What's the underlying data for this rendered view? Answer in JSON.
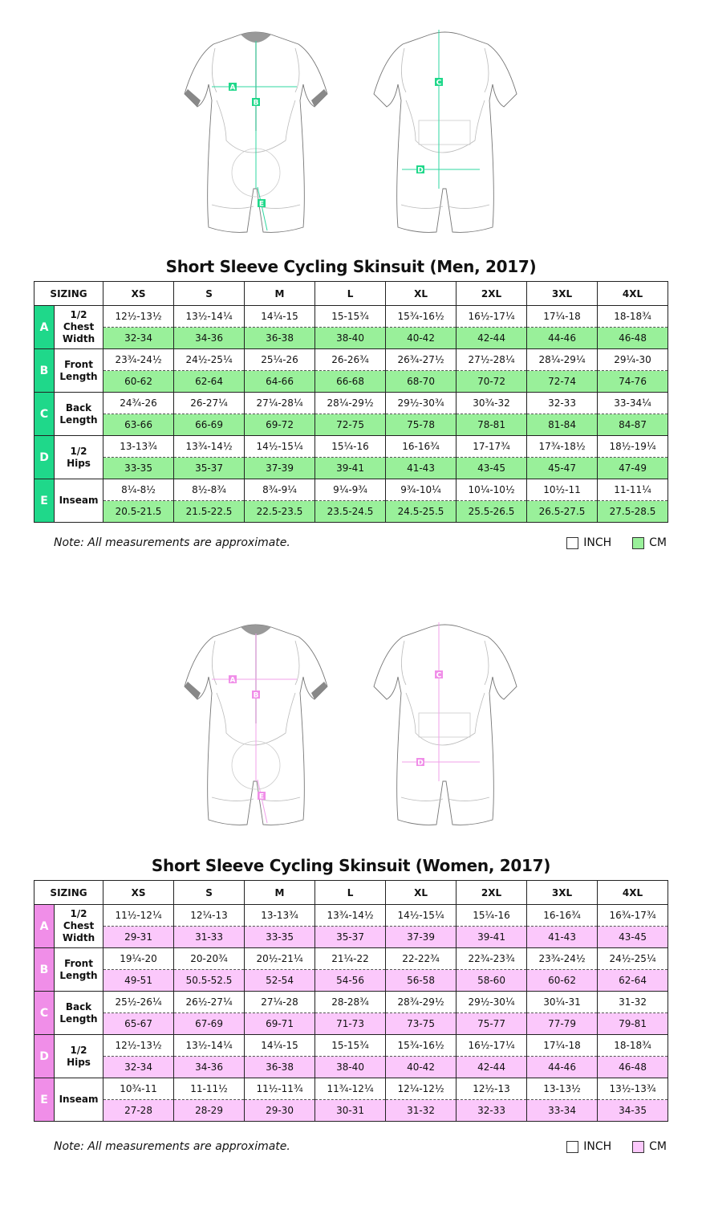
{
  "charts": [
    {
      "id": "men",
      "title": "Short Sleeve Cycling Skinsuit (Men, 2017)",
      "colors": {
        "accent": "#1fd88a",
        "cm_row": "#99f09a",
        "line": "#2fd7a0"
      },
      "header": {
        "sizing": "SIZING",
        "sizes": [
          "XS",
          "S",
          "M",
          "L",
          "XL",
          "2XL",
          "3XL",
          "4XL"
        ]
      },
      "rows": [
        {
          "letter": "A",
          "label": [
            "1/2",
            "Chest",
            "Width"
          ],
          "inch": [
            "12½-13½",
            "13½-14¼",
            "14¼-15",
            "15-15¾",
            "15¾-16½",
            "16½-17¼",
            "17¼-18",
            "18-18¾"
          ],
          "cm": [
            "32-34",
            "34-36",
            "36-38",
            "38-40",
            "40-42",
            "42-44",
            "44-46",
            "46-48"
          ]
        },
        {
          "letter": "B",
          "label": [
            "Front",
            "Length"
          ],
          "inch": [
            "23¾-24½",
            "24½-25¼",
            "25¼-26",
            "26-26¾",
            "26¾-27½",
            "27½-28¼",
            "28¼-29¼",
            "29¼-30"
          ],
          "cm": [
            "60-62",
            "62-64",
            "64-66",
            "66-68",
            "68-70",
            "70-72",
            "72-74",
            "74-76"
          ]
        },
        {
          "letter": "C",
          "label": [
            "Back",
            "Length"
          ],
          "inch": [
            "24¾-26",
            "26-27¼",
            "27¼-28¼",
            "28¼-29½",
            "29½-30¾",
            "30¾-32",
            "32-33",
            "33-34¼"
          ],
          "cm": [
            "63-66",
            "66-69",
            "69-72",
            "72-75",
            "75-78",
            "78-81",
            "81-84",
            "84-87"
          ]
        },
        {
          "letter": "D",
          "label": [
            "1/2",
            "Hips"
          ],
          "inch": [
            "13-13¾",
            "13¾-14½",
            "14½-15¼",
            "15¼-16",
            "16-16¾",
            "17-17¾",
            "17¾-18½",
            "18½-19¼"
          ],
          "cm": [
            "33-35",
            "35-37",
            "37-39",
            "39-41",
            "41-43",
            "43-45",
            "45-47",
            "47-49"
          ]
        },
        {
          "letter": "E",
          "label": [
            "Inseam"
          ],
          "inch": [
            "8¼-8½",
            "8½-8¾",
            "8¾-9¼",
            "9¼-9¾",
            "9¾-10¼",
            "10¼-10½",
            "10½-11",
            "11-11¼"
          ],
          "cm": [
            "20.5-21.5",
            "21.5-22.5",
            "22.5-23.5",
            "23.5-24.5",
            "24.5-25.5",
            "25.5-26.5",
            "26.5-27.5",
            "27.5-28.5"
          ]
        }
      ],
      "note": "Note: All measurements are approximate.",
      "legend": {
        "inch": "INCH",
        "cm": "CM"
      }
    },
    {
      "id": "women",
      "title": "Short Sleeve Cycling Skinsuit (Women, 2017)",
      "colors": {
        "accent": "#f08ee8",
        "cm_row": "#fbc8fb",
        "line": "#f0a0ea"
      },
      "header": {
        "sizing": "SIZING",
        "sizes": [
          "XS",
          "S",
          "M",
          "L",
          "XL",
          "2XL",
          "3XL",
          "4XL"
        ]
      },
      "rows": [
        {
          "letter": "A",
          "label": [
            "1/2",
            "Chest",
            "Width"
          ],
          "inch": [
            "11½-12¼",
            "12¼-13",
            "13-13¾",
            "13¾-14½",
            "14½-15¼",
            "15¼-16",
            "16-16¾",
            "16¾-17¾"
          ],
          "cm": [
            "29-31",
            "31-33",
            "33-35",
            "35-37",
            "37-39",
            "39-41",
            "41-43",
            "43-45"
          ]
        },
        {
          "letter": "B",
          "label": [
            "Front",
            "Length"
          ],
          "inch": [
            "19¼-20",
            "20-20¾",
            "20½-21¼",
            "21¼-22",
            "22-22¾",
            "22¾-23¾",
            "23¾-24½",
            "24½-25¼"
          ],
          "cm": [
            "49-51",
            "50.5-52.5",
            "52-54",
            "54-56",
            "56-58",
            "58-60",
            "60-62",
            "62-64"
          ]
        },
        {
          "letter": "C",
          "label": [
            "Back",
            "Length"
          ],
          "inch": [
            "25½-26¼",
            "26½-27¼",
            "27¼-28",
            "28-28¾",
            "28¾-29½",
            "29½-30¼",
            "30¼-31",
            "31-32"
          ],
          "cm": [
            "65-67",
            "67-69",
            "69-71",
            "71-73",
            "73-75",
            "75-77",
            "77-79",
            "79-81"
          ]
        },
        {
          "letter": "D",
          "label": [
            "1/2",
            "Hips"
          ],
          "inch": [
            "12½-13½",
            "13½-14¼",
            "14¼-15",
            "15-15¾",
            "15¾-16½",
            "16½-17¼",
            "17¼-18",
            "18-18¾"
          ],
          "cm": [
            "32-34",
            "34-36",
            "36-38",
            "38-40",
            "40-42",
            "42-44",
            "44-46",
            "46-48"
          ]
        },
        {
          "letter": "E",
          "label": [
            "Inseam"
          ],
          "inch": [
            "10¾-11",
            "11-11½",
            "11½-11¾",
            "11¾-12¼",
            "12¼-12½",
            "12½-13",
            "13-13½",
            "13½-13¾"
          ],
          "cm": [
            "27-28",
            "28-29",
            "29-30",
            "30-31",
            "31-32",
            "32-33",
            "33-34",
            "34-35"
          ]
        }
      ],
      "note": "Note: All measurements are approximate.",
      "legend": {
        "inch": "INCH",
        "cm": "CM"
      }
    }
  ]
}
